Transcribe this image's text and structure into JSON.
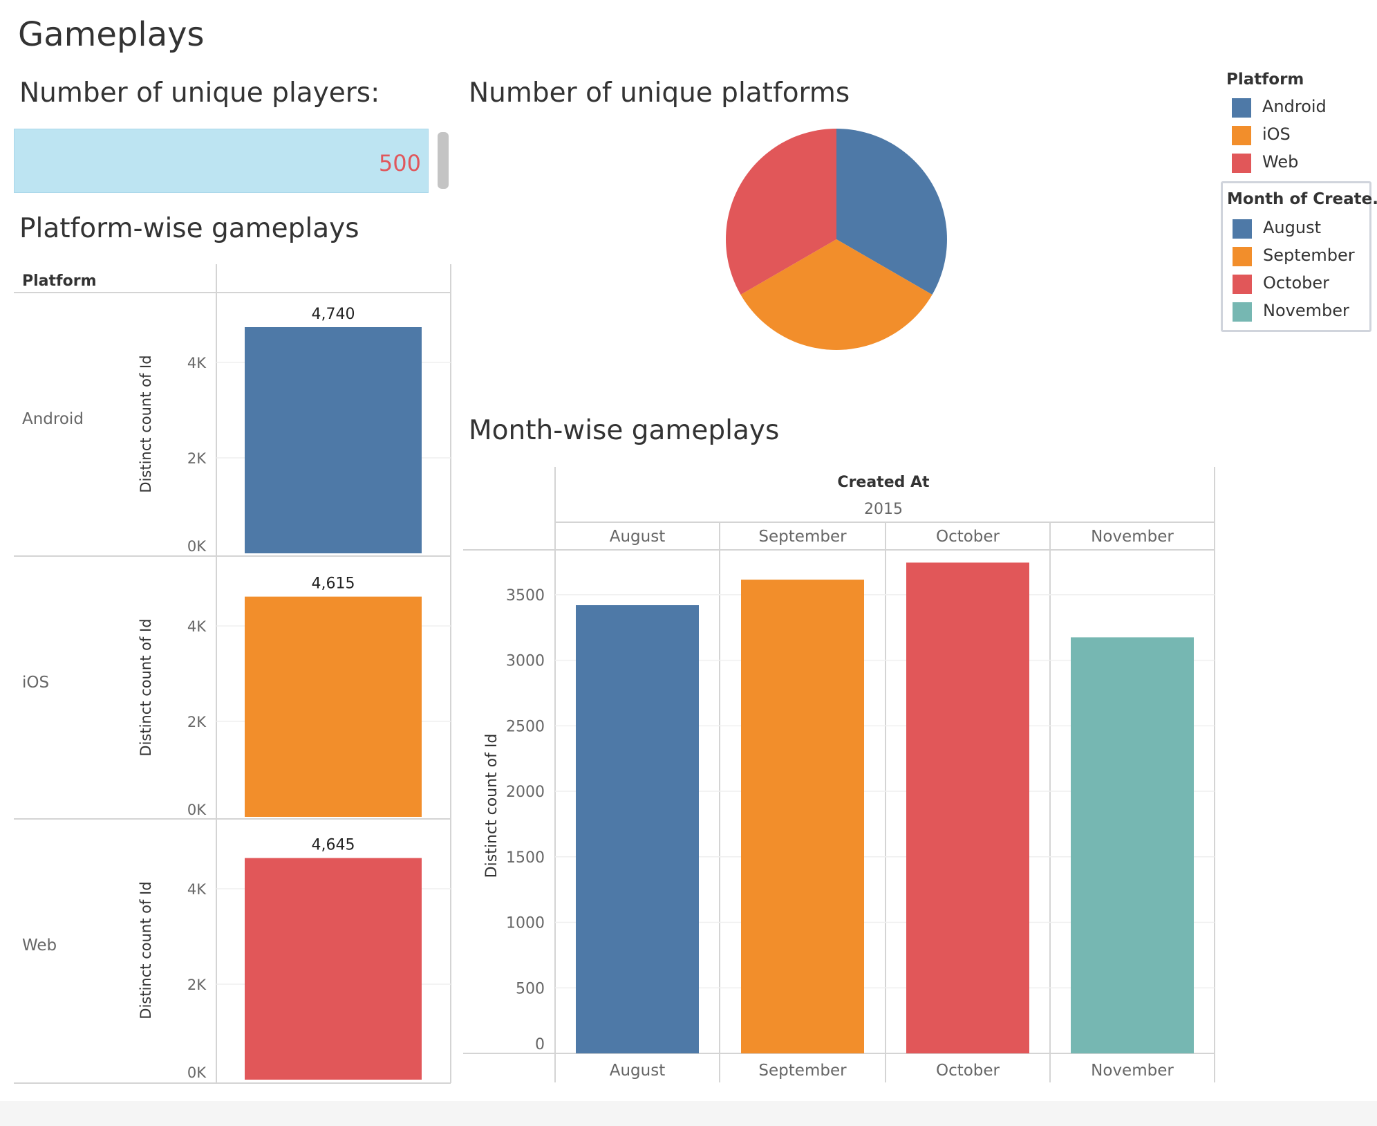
{
  "dashboard": {
    "title": "Gameplays"
  },
  "kpi": {
    "title": "Number of unique players:",
    "value": "500"
  },
  "platform_pie": {
    "title": "Number of unique platforms"
  },
  "platform_bars": {
    "title": "Platform-wise gameplays"
  },
  "month_bars": {
    "title": "Month-wise gameplays"
  },
  "legend_platform": {
    "title": "Platform",
    "items": [
      {
        "label": "Android",
        "color": "#4e79a7"
      },
      {
        "label": "iOS",
        "color": "#f28e2b"
      },
      {
        "label": "Web",
        "color": "#e15759"
      }
    ]
  },
  "legend_month": {
    "title": "Month of Create..",
    "items": [
      {
        "label": "August",
        "color": "#4e79a7"
      },
      {
        "label": "September",
        "color": "#f28e2b"
      },
      {
        "label": "October",
        "color": "#e15759"
      },
      {
        "label": "November",
        "color": "#76b7b2"
      }
    ]
  },
  "chart_data": [
    {
      "type": "pie",
      "title": "Number of unique platforms",
      "slices": [
        {
          "label": "Android",
          "value": 1,
          "color": "#4e79a7"
        },
        {
          "label": "iOS",
          "value": 1,
          "color": "#f28e2b"
        },
        {
          "label": "Web",
          "value": 1,
          "color": "#e15759"
        }
      ]
    },
    {
      "type": "bar",
      "title": "Platform-wise gameplays",
      "row_header": "Platform",
      "ylabel": "Distinct count of Id",
      "ylim": [
        0,
        4740
      ],
      "yticks": [
        0,
        2000,
        4000
      ],
      "ytick_labels": [
        "0K",
        "2K",
        "4K"
      ],
      "categories": [
        "Android",
        "iOS",
        "Web"
      ],
      "values": [
        4740,
        4615,
        4645
      ],
      "data_labels": [
        "4,740",
        "4,615",
        "4,645"
      ],
      "colors": [
        "#4e79a7",
        "#f28e2b",
        "#e15759"
      ]
    },
    {
      "type": "bar",
      "title": "Month-wise gameplays",
      "header": "Created At",
      "year": "2015",
      "ylabel": "Distinct count of Id",
      "ylim": [
        0,
        3800
      ],
      "yticks": [
        0,
        500,
        1000,
        1500,
        2000,
        2500,
        3000,
        3500
      ],
      "categories": [
        "August",
        "September",
        "October",
        "November"
      ],
      "values": [
        3420,
        3615,
        3745,
        3175
      ],
      "colors": [
        "#4e79a7",
        "#f28e2b",
        "#e15759",
        "#76b7b2"
      ],
      "grid": true
    }
  ]
}
